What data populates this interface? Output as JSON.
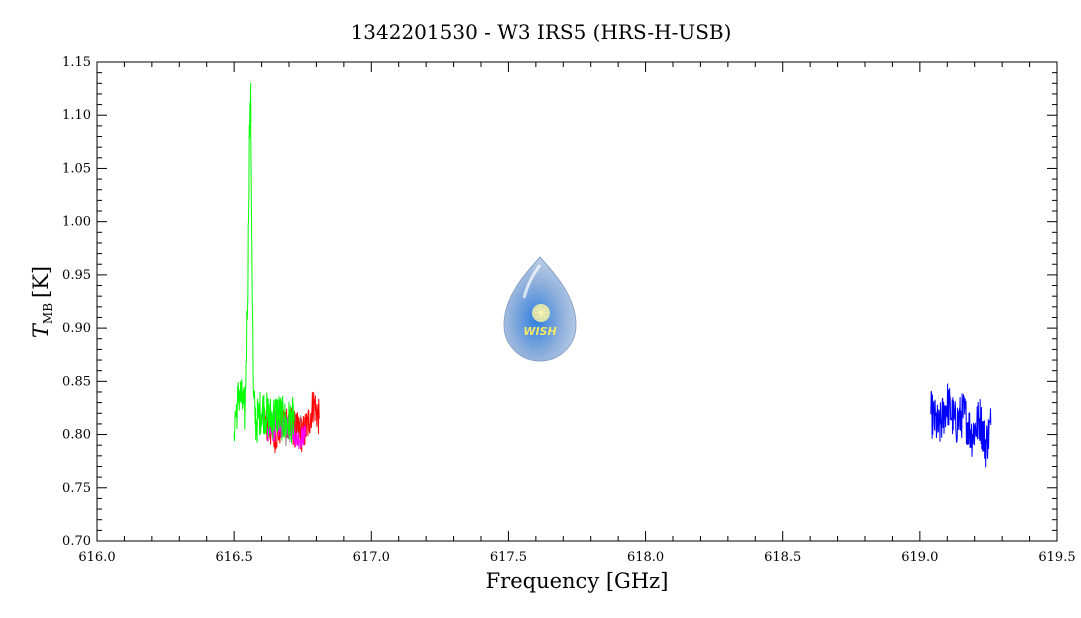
{
  "colors": {
    "gray": "#808080",
    "green": "#00ff00",
    "red": "#ff0000",
    "magenta": "#ff00ff",
    "blue": "#0000ff",
    "logo_fill": "#9fb6d8",
    "logo_text": "#f2e868"
  },
  "logo": {
    "icon": "water-drop-star-logo",
    "text": "WISH"
  },
  "chart_data": {
    "type": "line",
    "title": "1342201530 - W3 IRS5 (HRS-H-USB)",
    "xlabel": "Frequency [GHz]",
    "ylabel_main": "T",
    "ylabel_sub": "MB",
    "ylabel_unit": "[K]",
    "xlim": [
      616.0,
      619.5
    ],
    "ylim": [
      0.7,
      1.15
    ],
    "x_ticks": [
      "616.0",
      "616.5",
      "617.0",
      "617.5",
      "618.0",
      "618.5",
      "619.0",
      "619.5"
    ],
    "y_ticks": [
      "0.70",
      "0.75",
      "0.80",
      "0.85",
      "0.90",
      "0.95",
      "1.00",
      "1.05",
      "1.10",
      "1.15"
    ],
    "grid": false,
    "series": [
      {
        "color": "gray",
        "x": [
          616.6,
          616.63,
          616.66,
          616.69,
          616.72,
          616.75
        ],
        "y": [
          0.815,
          0.805,
          0.82,
          0.8,
          0.81,
          0.805
        ]
      },
      {
        "color": "red",
        "x": [
          616.61,
          616.65,
          616.69,
          616.72,
          616.75,
          616.77,
          616.79,
          616.81
        ],
        "y": [
          0.81,
          0.8,
          0.815,
          0.805,
          0.8,
          0.81,
          0.83,
          0.815
        ]
      },
      {
        "color": "magenta",
        "x": [
          616.62,
          616.66,
          616.7,
          616.73,
          616.76
        ],
        "y": [
          0.8,
          0.805,
          0.81,
          0.795,
          0.8
        ]
      },
      {
        "color": "green",
        "x": [
          616.5,
          616.52,
          616.54,
          616.55,
          616.555,
          616.56,
          616.565,
          616.57,
          616.58,
          616.6,
          616.63,
          616.66,
          616.69,
          616.72
        ],
        "y": [
          0.81,
          0.84,
          0.82,
          0.95,
          1.08,
          1.11,
          0.96,
          0.83,
          0.81,
          0.825,
          0.815,
          0.82,
          0.81,
          0.815
        ]
      },
      {
        "color": "blue",
        "x": [
          619.04,
          619.07,
          619.1,
          619.13,
          619.16,
          619.19,
          619.22,
          619.24,
          619.26
        ],
        "y": [
          0.82,
          0.805,
          0.83,
          0.81,
          0.82,
          0.8,
          0.815,
          0.79,
          0.81
        ]
      }
    ]
  }
}
